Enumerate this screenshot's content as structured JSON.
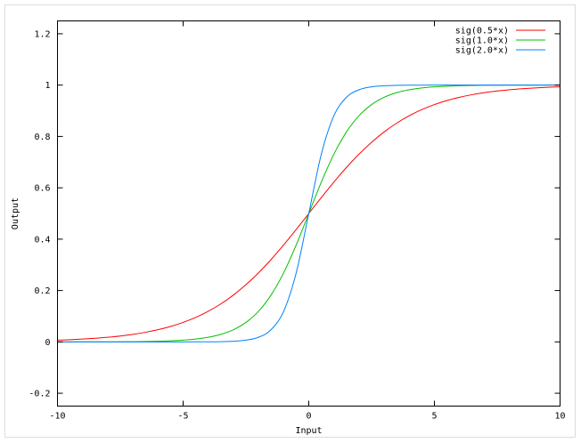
{
  "chart_data": {
    "type": "line",
    "title": "",
    "xlabel": "Input",
    "ylabel": "Output",
    "xlim": [
      -10,
      10
    ],
    "ylim": [
      -0.25,
      1.25
    ],
    "xticks": [
      -10,
      -5,
      0,
      5,
      10
    ],
    "xtick_labels": [
      "-10",
      "-5",
      "0",
      "5",
      "10"
    ],
    "yticks": [
      -0.2,
      0,
      0.2,
      0.4,
      0.6,
      0.8,
      1,
      1.2
    ],
    "ytick_labels": [
      "-0.2",
      "0",
      "0.2",
      "0.4",
      "0.6",
      "0.8",
      "1",
      "1.2"
    ],
    "grid": false,
    "legend_position": "top-right",
    "x": [
      -10,
      -9.5,
      -9,
      -8.5,
      -8,
      -7.5,
      -7,
      -6.5,
      -6,
      -5.5,
      -5,
      -4.5,
      -4,
      -3.5,
      -3,
      -2.5,
      -2,
      -1.5,
      -1,
      -0.5,
      0,
      0.5,
      1,
      1.5,
      2,
      2.5,
      3,
      3.5,
      4,
      4.5,
      5,
      5.5,
      6,
      6.5,
      7,
      7.5,
      8,
      8.5,
      9,
      9.5,
      10
    ],
    "series": [
      {
        "name": "sig(0.5*x)",
        "color": "#ff0000",
        "values": [
          0.0067,
          0.0086,
          0.011,
          0.0141,
          0.018,
          0.023,
          0.0293,
          0.0373,
          0.0474,
          0.0601,
          0.0759,
          0.0953,
          0.1192,
          0.148,
          0.1824,
          0.2227,
          0.2689,
          0.3208,
          0.3775,
          0.4378,
          0.5,
          0.5622,
          0.6225,
          0.6792,
          0.7311,
          0.7773,
          0.8176,
          0.852,
          0.8808,
          0.9047,
          0.9241,
          0.9399,
          0.9526,
          0.9627,
          0.9707,
          0.977,
          0.982,
          0.9859,
          0.989,
          0.9914,
          0.9933
        ]
      },
      {
        "name": "sig(1.0*x)",
        "color": "#00c000",
        "values": [
          0.0,
          0.0001,
          0.0001,
          0.0002,
          0.0003,
          0.0006,
          0.0009,
          0.0015,
          0.0025,
          0.0041,
          0.0067,
          0.011,
          0.018,
          0.0293,
          0.0474,
          0.0759,
          0.1192,
          0.1824,
          0.2689,
          0.3775,
          0.5,
          0.6225,
          0.7311,
          0.8176,
          0.8808,
          0.9241,
          0.9526,
          0.9707,
          0.982,
          0.989,
          0.9933,
          0.9959,
          0.9975,
          0.9985,
          0.9991,
          0.9994,
          0.9997,
          0.9998,
          0.9999,
          0.9999,
          1.0
        ]
      },
      {
        "name": "sig(2.0*x)",
        "color": "#0080ff",
        "values": [
          0,
          0,
          0,
          0,
          0,
          0,
          0,
          0,
          0,
          0,
          0,
          0.0001,
          0.0003,
          0.0009,
          0.0025,
          0.0067,
          0.018,
          0.0474,
          0.1192,
          0.2689,
          0.5,
          0.7311,
          0.8808,
          0.9526,
          0.982,
          0.9933,
          0.9975,
          0.9991,
          0.9997,
          0.9999,
          1,
          1,
          1,
          1,
          1,
          1,
          1,
          1,
          1,
          1,
          1
        ]
      }
    ]
  }
}
